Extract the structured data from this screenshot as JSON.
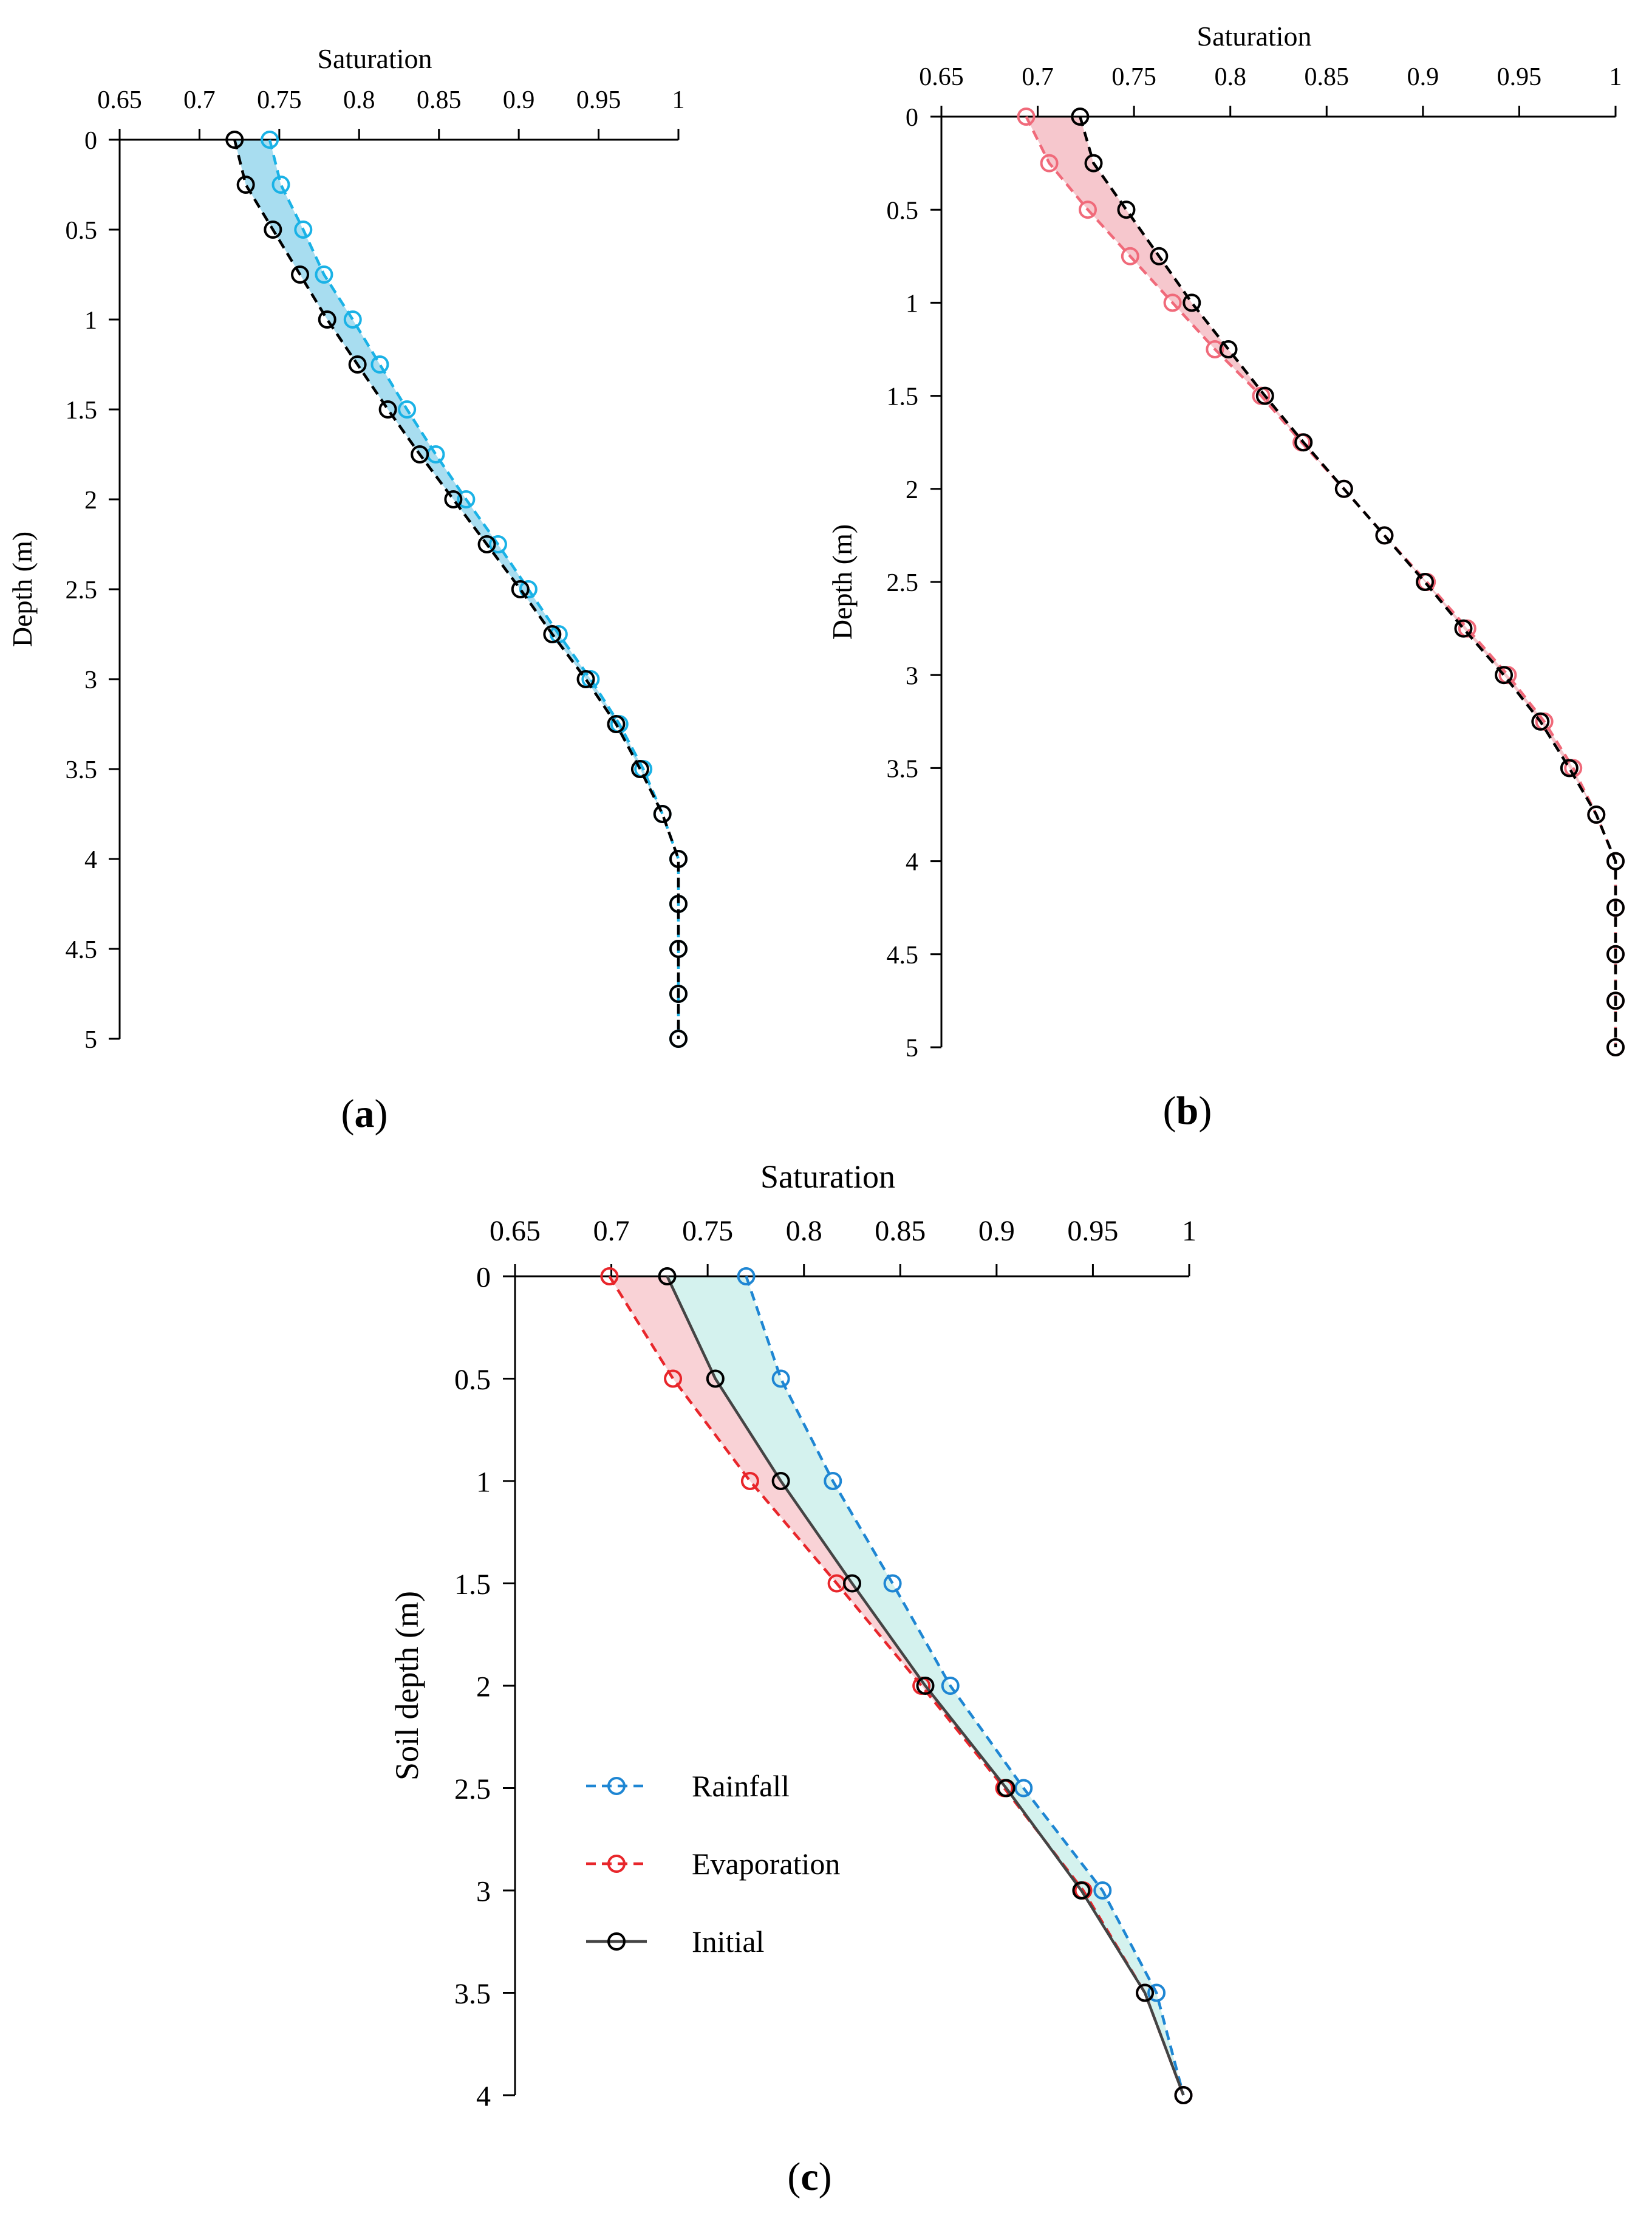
{
  "chart_data": [
    {
      "panel": "a",
      "panel_label": "a",
      "type": "line",
      "orientation": "depth-profile",
      "xlabel": "Saturation",
      "ylabel": "Depth (m)",
      "xlim": [
        0.65,
        1
      ],
      "ylim": [
        0,
        5
      ],
      "xticks": [
        "0.65",
        "0.7",
        "0.75",
        "0.8",
        "0.85",
        "0.9",
        "0.95",
        "1"
      ],
      "yticks": [
        "0",
        "0.5",
        "1",
        "1.5",
        "2",
        "2.5",
        "3",
        "3.5",
        "4",
        "4.5",
        "5"
      ],
      "fill_between": {
        "series": [
          "Rainfall",
          "Initial"
        ],
        "color": "#A8DDF0"
      },
      "series": [
        {
          "name": "Rainfall",
          "color": "#1AB2E6",
          "dashed": true,
          "solid": false,
          "marker": "circle",
          "depth": [
            0,
            0.25,
            0.5,
            0.75,
            1,
            1.25,
            1.5,
            1.75,
            2,
            2.25,
            2.5,
            2.75,
            3,
            3.25,
            3.5,
            3.75,
            4,
            4.25,
            4.5,
            4.75,
            5
          ],
          "saturation": [
            0.744,
            0.751,
            0.765,
            0.778,
            0.796,
            0.813,
            0.83,
            0.848,
            0.867,
            0.887,
            0.906,
            0.925,
            0.945,
            0.963,
            0.978,
            0.99,
            1.0,
            1.0,
            1.0,
            1.0,
            1.0
          ]
        },
        {
          "name": "Initial",
          "color": "#000000",
          "dashed": true,
          "solid": false,
          "marker": "circle",
          "depth": [
            0,
            0.25,
            0.5,
            0.75,
            1,
            1.25,
            1.5,
            1.75,
            2,
            2.25,
            2.5,
            2.75,
            3,
            3.25,
            3.5,
            3.75,
            4,
            4.25,
            4.5,
            4.75,
            5
          ],
          "saturation": [
            0.722,
            0.729,
            0.746,
            0.763,
            0.78,
            0.799,
            0.818,
            0.838,
            0.859,
            0.88,
            0.901,
            0.921,
            0.942,
            0.961,
            0.976,
            0.99,
            1.0,
            1.0,
            1.0,
            1.0,
            1.0
          ]
        }
      ]
    },
    {
      "panel": "b",
      "panel_label": "b",
      "type": "line",
      "orientation": "depth-profile",
      "xlabel": "Saturation",
      "ylabel": "Depth (m)",
      "xlim": [
        0.65,
        1
      ],
      "ylim": [
        0,
        5
      ],
      "xticks": [
        "0.65",
        "0.7",
        "0.75",
        "0.8",
        "0.85",
        "0.9",
        "0.95",
        "1"
      ],
      "yticks": [
        "0",
        "0.5",
        "1",
        "1.5",
        "2",
        "2.5",
        "3",
        "3.5",
        "4",
        "4.5",
        "5"
      ],
      "fill_between": {
        "series": [
          "Evaporation",
          "Initial"
        ],
        "color": "#F6C7CD"
      },
      "series": [
        {
          "name": "Evaporation",
          "color": "#F06A7A",
          "dashed": true,
          "solid": false,
          "marker": "circle",
          "depth": [
            0,
            0.25,
            0.5,
            0.75,
            1,
            1.25,
            1.5,
            1.75,
            2,
            2.25,
            2.5,
            2.75,
            3,
            3.25,
            3.5,
            3.75,
            4,
            4.25,
            4.5,
            4.75,
            5
          ],
          "saturation": [
            0.694,
            0.706,
            0.726,
            0.748,
            0.77,
            0.792,
            0.816,
            0.837,
            0.859,
            0.88,
            0.902,
            0.923,
            0.944,
            0.963,
            0.978,
            0.99,
            1.0,
            1.0,
            1.0,
            1.0,
            1.0
          ]
        },
        {
          "name": "Initial",
          "color": "#000000",
          "dashed": true,
          "solid": false,
          "marker": "circle",
          "depth": [
            0,
            0.25,
            0.5,
            0.75,
            1,
            1.25,
            1.5,
            1.75,
            2,
            2.25,
            2.5,
            2.75,
            3,
            3.25,
            3.5,
            3.75,
            4,
            4.25,
            4.5,
            4.75,
            5
          ],
          "saturation": [
            0.722,
            0.729,
            0.746,
            0.763,
            0.78,
            0.799,
            0.818,
            0.838,
            0.859,
            0.88,
            0.901,
            0.921,
            0.942,
            0.961,
            0.976,
            0.99,
            1.0,
            1.0,
            1.0,
            1.0,
            1.0
          ]
        }
      ]
    },
    {
      "panel": "c",
      "panel_label": "c",
      "type": "line",
      "orientation": "depth-profile",
      "xlabel": "Saturation",
      "ylabel": "Soil depth (m)",
      "xlim": [
        0.65,
        1
      ],
      "ylim": [
        0,
        4
      ],
      "xticks": [
        "0.65",
        "0.7",
        "0.75",
        "0.8",
        "0.85",
        "0.9",
        "0.95",
        "1"
      ],
      "yticks": [
        "0",
        "0.5",
        "1",
        "1.5",
        "2",
        "2.5",
        "3",
        "3.5",
        "4"
      ],
      "fill_between_rain": {
        "series": [
          "Rainfall",
          "Initial"
        ],
        "color": "#D4F2EE"
      },
      "fill_between_evap": {
        "series": [
          "Evaporation",
          "Initial"
        ],
        "color": "#F9D2D6"
      },
      "legend": {
        "position": "lower-left",
        "entries": [
          "Rainfall",
          "Evaporation",
          "Initial"
        ]
      },
      "series": [
        {
          "name": "Rainfall",
          "color": "#1E86D3",
          "dashed": true,
          "solid": false,
          "marker": "circle",
          "depth": [
            0,
            0.5,
            1,
            1.5,
            2,
            2.5,
            3,
            3.5,
            4
          ],
          "saturation": [
            0.77,
            0.788,
            0.815,
            0.846,
            0.876,
            0.914,
            0.955,
            0.983,
            0.997
          ]
        },
        {
          "name": "Evaporation",
          "color": "#E8262B",
          "dashed": true,
          "solid": false,
          "marker": "circle",
          "depth": [
            0,
            0.5,
            1,
            1.5,
            2,
            2.5,
            3,
            3.5,
            4
          ],
          "saturation": [
            0.699,
            0.732,
            0.772,
            0.817,
            0.861,
            0.904,
            0.945,
            0.977,
            0.997
          ]
        },
        {
          "name": "Initial",
          "color": "#000000",
          "dashed": false,
          "solid": true,
          "marker": "circle",
          "depth": [
            0,
            0.5,
            1,
            1.5,
            2,
            2.5,
            3,
            3.5,
            4
          ],
          "saturation": [
            0.729,
            0.754,
            0.788,
            0.825,
            0.863,
            0.905,
            0.944,
            0.977,
            0.997
          ]
        }
      ]
    }
  ]
}
